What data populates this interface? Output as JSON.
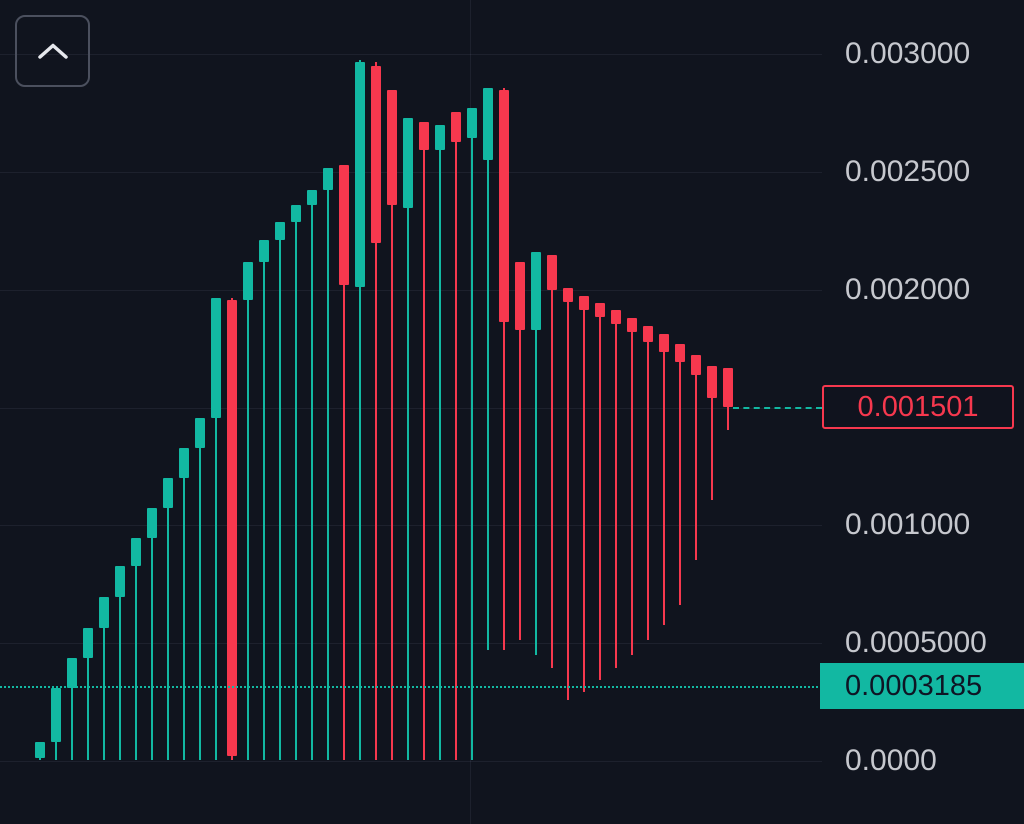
{
  "colors": {
    "background": "#10141e",
    "grid": "rgba(151,161,182,0.10)",
    "up": "#12b8a2",
    "down": "#f6384e",
    "axis_text": "#c6c8ce",
    "button_border": "#4b505e",
    "icon": "#e6e8ed",
    "filled_label_bg": "#12b8a2",
    "filled_label_text": "#0e1524"
  },
  "toolbar": {
    "collapse_button_icon": "chevron-up"
  },
  "price_scale": {
    "labels": [
      {
        "text": "0.003000",
        "price": 0.003
      },
      {
        "text": "0.002500",
        "price": 0.0025
      },
      {
        "text": "0.002000",
        "price": 0.002
      },
      {
        "text": "0.001000",
        "price": 0.001
      },
      {
        "text": "0.0005000",
        "price": 0.0005
      },
      {
        "text": "0.0000",
        "price": 0
      }
    ]
  },
  "price_lines": [
    {
      "kind": "last-trade-price",
      "text": "0.001501",
      "price": 0.001501,
      "line_style": "dashed",
      "line_color": "#12b8a2",
      "label_style": "outlined",
      "label_text_color": "#f6384e",
      "label_border_color": "#f6384e",
      "span": "from-last-candle"
    },
    {
      "kind": "reference-price",
      "text": "0.0003185",
      "price": 0.0003185,
      "line_style": "dotted",
      "line_color": "#12b8a2",
      "label_style": "filled",
      "label_text_color": "#0e1524",
      "label_fill_color": "#12b8a2",
      "span": "full-width"
    }
  ],
  "chart_data": {
    "type": "candlestick",
    "title": "",
    "xlabel": "",
    "ylabel": "price",
    "ylim": [
      0,
      0.003
    ],
    "grid": "horizontal",
    "grid_prices": [
      0.003,
      0.0025,
      0.002,
      0.0015,
      0.001,
      0.0005,
      0
    ],
    "up_color": "#12b8a2",
    "down_color": "#f6384e",
    "last_price": 0.001501,
    "reference_price": 0.0003185,
    "candles_ohlc": [
      [
        1.3e-05,
        8.1e-05,
        4e-06,
        8.1e-05
      ],
      [
        8.1e-05,
        0.00031,
        4e-06,
        0.00031
      ],
      [
        0.00031,
        0.000437,
        4e-06,
        0.000437
      ],
      [
        0.000437,
        0.000564,
        4e-06,
        0.000564
      ],
      [
        0.000564,
        0.000696,
        4e-06,
        0.000696
      ],
      [
        0.000696,
        0.000827,
        4e-06,
        0.000827
      ],
      [
        0.000827,
        0.000946,
        4e-06,
        0.000946
      ],
      [
        0.000946,
        0.001074,
        4e-06,
        0.001074
      ],
      [
        0.001074,
        0.001201,
        4e-06,
        0.001201
      ],
      [
        0.001201,
        0.001328,
        4e-06,
        0.001328
      ],
      [
        0.001328,
        0.001455,
        4e-06,
        0.001455
      ],
      [
        0.001455,
        0.001965,
        4e-06,
        0.001965
      ],
      [
        0.001956,
        0.001965,
        4e-06,
        2.1e-05
      ],
      [
        0.001956,
        0.002117,
        4e-06,
        0.002117
      ],
      [
        0.002117,
        0.002211,
        4e-06,
        0.002211
      ],
      [
        0.002211,
        0.002287,
        4e-06,
        0.002287
      ],
      [
        0.002287,
        0.002359,
        4e-06,
        0.002359
      ],
      [
        0.002359,
        0.002423,
        4e-06,
        0.002423
      ],
      [
        0.002423,
        0.002516,
        4e-06,
        0.002516
      ],
      [
        0.002529,
        0.002529,
        4e-06,
        0.00202
      ],
      [
        0.002011,
        0.002974,
        4e-06,
        0.002966
      ],
      [
        0.002949,
        0.002966,
        4e-06,
        0.002198
      ],
      [
        0.002847,
        0.002847,
        4e-06,
        0.002359
      ],
      [
        0.002347,
        0.002728,
        4e-06,
        0.002728
      ],
      [
        0.002711,
        0.002711,
        4e-06,
        0.002593
      ],
      [
        0.002593,
        0.002699,
        4e-06,
        0.002699
      ],
      [
        0.002754,
        0.002754,
        4e-06,
        0.002627
      ],
      [
        0.002644,
        0.002771,
        4e-06,
        0.002771
      ],
      [
        0.00255,
        0.002856,
        0.000471,
        0.002856
      ],
      [
        0.002847,
        0.002856,
        0.000471,
        0.001863
      ],
      [
        0.002117,
        0.002117,
        0.000513,
        0.001829
      ],
      [
        0.001829,
        0.00216,
        0.00045,
        0.00216
      ],
      [
        0.002147,
        0.002147,
        0.000395,
        0.001999
      ],
      [
        0.002007,
        0.002007,
        0.000259,
        0.001948
      ],
      [
        0.001973,
        0.001973,
        0.000293,
        0.001914
      ],
      [
        0.001943,
        0.001943,
        0.000344,
        0.001884
      ],
      [
        0.001914,
        0.001914,
        0.000395,
        0.001854
      ],
      [
        0.00188,
        0.00188,
        0.00045,
        0.00182
      ],
      [
        0.001846,
        0.001846,
        0.000513,
        0.001778
      ],
      [
        0.001812,
        0.001812,
        0.000577,
        0.001736
      ],
      [
        0.001769,
        0.001769,
        0.000662,
        0.001693
      ],
      [
        0.001723,
        0.001723,
        0.000853,
        0.001638
      ],
      [
        0.001676,
        0.001676,
        0.001107,
        0.00154
      ],
      [
        0.001668,
        0.001668,
        0.001404,
        0.001501
      ]
    ]
  }
}
